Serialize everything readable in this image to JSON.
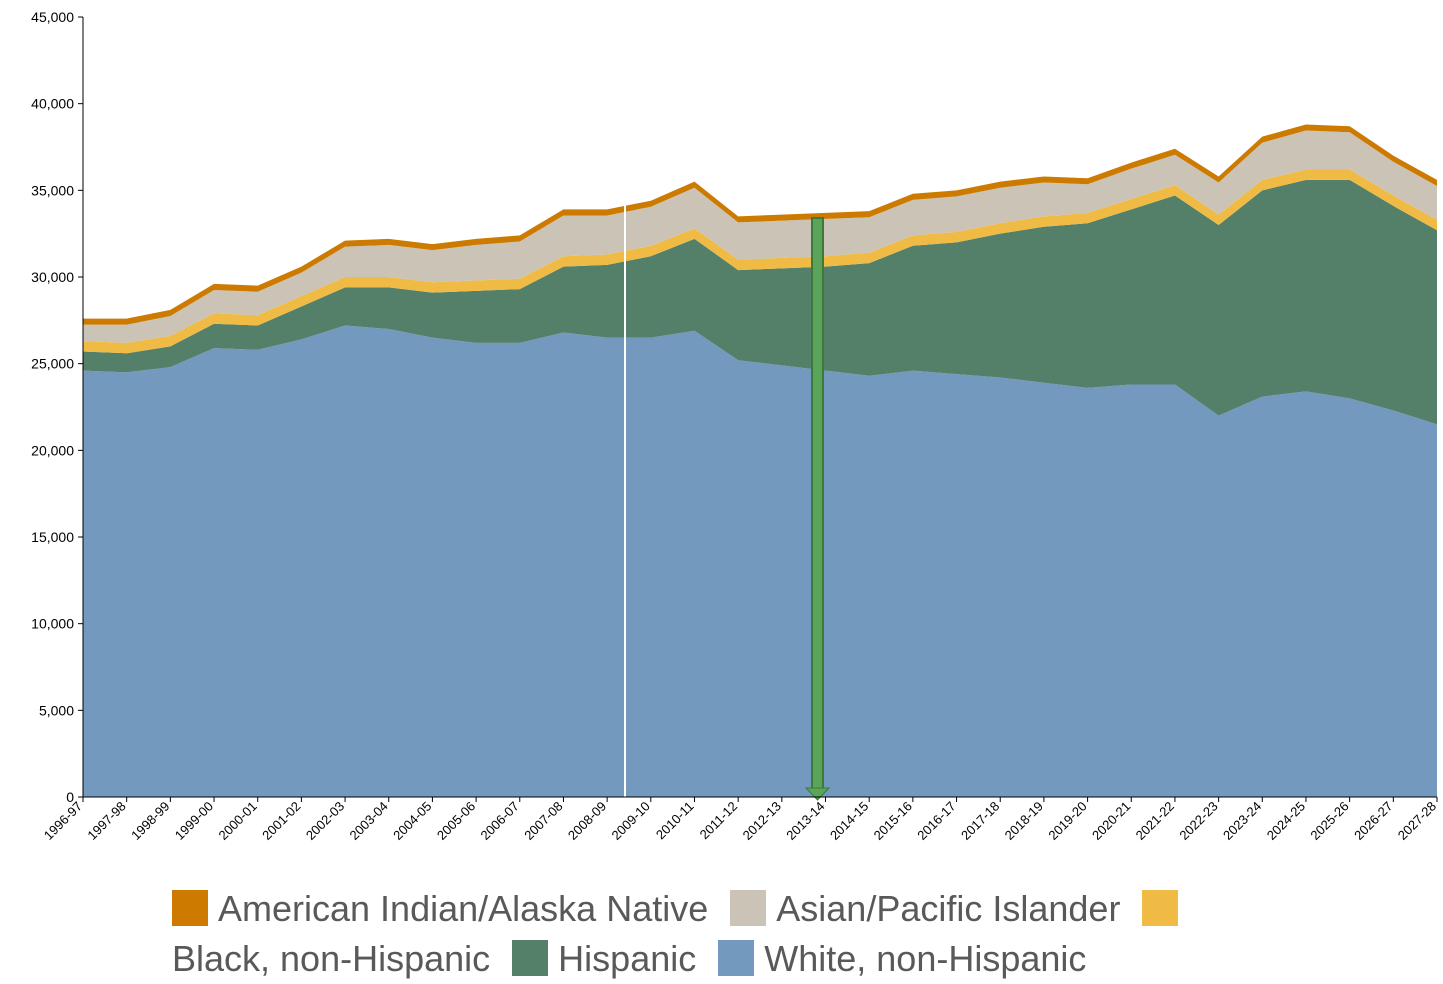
{
  "chart_data": {
    "type": "stacked_area",
    "categories": [
      "1996-97",
      "1997-98",
      "1998-99",
      "1999-00",
      "2000-01",
      "2001-02",
      "2002-03",
      "2003-04",
      "2004-05",
      "2005-06",
      "2006-07",
      "2007-08",
      "2008-09",
      "2009-10",
      "2010-11",
      "2011-12",
      "2012-13",
      "2013-14",
      "2014-15",
      "2015-16",
      "2016-17",
      "2017-18",
      "2018-19",
      "2019-20",
      "2020-21",
      "2021-22",
      "2022-23",
      "2023-24",
      "2024-25",
      "2025-26",
      "2026-27",
      "2027-28"
    ],
    "series": [
      {
        "name": "White, non-Hispanic",
        "color": "#7399be",
        "values": [
          24600,
          24500,
          24800,
          25900,
          25800,
          26400,
          27200,
          27000,
          26500,
          26200,
          26200,
          26800,
          26500,
          26500,
          26900,
          25200,
          24900,
          24600,
          24300,
          24600,
          24400,
          24200,
          23900,
          23600,
          23800,
          23800,
          22000,
          23100,
          23400,
          23000,
          22300,
          21500
        ]
      },
      {
        "name": "Hispanic",
        "color": "#548069",
        "values": [
          1100,
          1100,
          1200,
          1400,
          1400,
          1900,
          2200,
          2400,
          2600,
          3000,
          3100,
          3800,
          4200,
          4700,
          5300,
          5200,
          5600,
          6000,
          6500,
          7200,
          7600,
          8300,
          9000,
          9500,
          10100,
          10900,
          11000,
          11900,
          12200,
          12600,
          11800,
          11200
        ]
      },
      {
        "name": "Black, non-Hispanic",
        "color": "#f0bb45",
        "values": [
          600,
          600,
          600,
          600,
          600,
          600,
          600,
          600,
          600,
          600,
          600,
          600,
          600,
          600,
          600,
          600,
          600,
          600,
          600,
          600,
          600,
          600,
          600,
          600,
          600,
          600,
          600,
          600,
          600,
          600,
          600,
          600
        ]
      },
      {
        "name": "Asian/Pacific Islander",
        "color": "#cbc3b5",
        "values": [
          950,
          1050,
          1150,
          1350,
          1350,
          1350,
          1750,
          1850,
          1850,
          2050,
          2150,
          2350,
          2250,
          2250,
          2350,
          2150,
          2150,
          2150,
          2050,
          2050,
          2050,
          2050,
          1950,
          1650,
          1750,
          1750,
          1850,
          2150,
          2250,
          2150,
          1950,
          1950
        ]
      },
      {
        "name": "American Indian/Alaska Native",
        "color": "#cc7a00",
        "values": [
          350,
          350,
          350,
          350,
          350,
          350,
          350,
          350,
          350,
          350,
          350,
          350,
          350,
          350,
          350,
          350,
          350,
          350,
          350,
          350,
          350,
          350,
          350,
          350,
          350,
          350,
          350,
          350,
          350,
          350,
          350,
          350
        ]
      }
    ],
    "ylim": [
      0,
      45000
    ],
    "yticks": [
      0,
      {
        "value": 5000,
        "label": "5,000"
      },
      {
        "value": 10000,
        "label": "10,000"
      },
      {
        "value": 15000,
        "label": "15,000"
      },
      {
        "value": 20000,
        "label": "20,000"
      },
      {
        "value": 25000,
        "label": "25,000"
      },
      {
        "value": 30000,
        "label": "30,000"
      },
      {
        "value": 35000,
        "label": "35,000"
      },
      {
        "value": 40000,
        "label": "40,000"
      },
      {
        "value": 45000,
        "label": "45,000"
      }
    ]
  }
}
